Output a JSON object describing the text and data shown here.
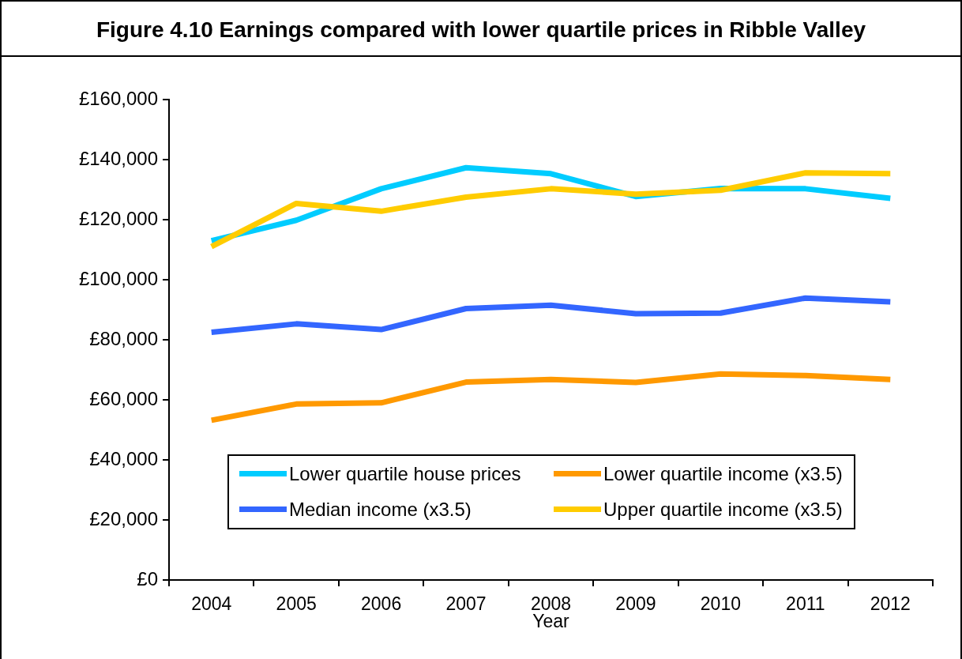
{
  "chart_data": {
    "type": "line",
    "title": "Figure 4.10 Earnings compared with lower quartile prices in Ribble Valley",
    "xlabel": "Year",
    "categories": [
      "2004",
      "2005",
      "2006",
      "2007",
      "2008",
      "2009",
      "2010",
      "2011",
      "2012"
    ],
    "series": [
      {
        "name": "Lower quartile house prices",
        "color": "#00ccff",
        "values": [
          113000,
          119800,
          130300,
          137300,
          135300,
          127700,
          130400,
          130300,
          127100
        ]
      },
      {
        "name": "Lower quartile income (x3.5)",
        "color": "#ff9900",
        "values": [
          53200,
          58600,
          59000,
          65900,
          66800,
          65800,
          68600,
          68100,
          66800
        ]
      },
      {
        "name": "Median income (x3.5)",
        "color": "#3366ff",
        "values": [
          82500,
          85300,
          83400,
          90400,
          91500,
          88700,
          88900,
          93900,
          92600
        ]
      },
      {
        "name": "Upper quartile income (x3.5)",
        "color": "#ffcc00",
        "values": [
          111000,
          125400,
          122800,
          127500,
          130300,
          128500,
          129800,
          135600,
          135300
        ]
      }
    ],
    "ylim": [
      0,
      160000
    ],
    "yticks": [
      {
        "value": 0,
        "label": "£0"
      },
      {
        "value": 20000,
        "label": "£20,000"
      },
      {
        "value": 40000,
        "label": "£40,000"
      },
      {
        "value": 60000,
        "label": "£60,000"
      },
      {
        "value": 80000,
        "label": "£80,000"
      },
      {
        "value": 100000,
        "label": "£100,000"
      },
      {
        "value": 120000,
        "label": "£120,000"
      },
      {
        "value": 140000,
        "label": "£140,000"
      },
      {
        "value": 160000,
        "label": "£160,000"
      }
    ],
    "legend": "bottom",
    "marker": "none",
    "line_style": "solid"
  }
}
